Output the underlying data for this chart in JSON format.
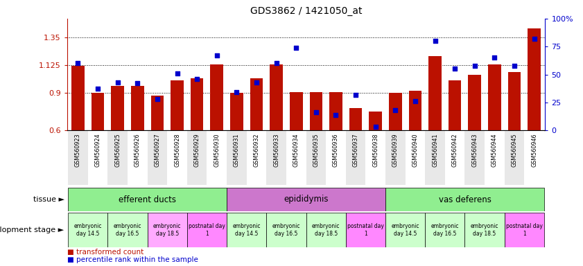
{
  "title": "GDS3862 / 1421050_at",
  "samples": [
    "GSM560923",
    "GSM560924",
    "GSM560925",
    "GSM560926",
    "GSM560927",
    "GSM560928",
    "GSM560929",
    "GSM560930",
    "GSM560931",
    "GSM560932",
    "GSM560933",
    "GSM560934",
    "GSM560935",
    "GSM560936",
    "GSM560937",
    "GSM560938",
    "GSM560939",
    "GSM560940",
    "GSM560941",
    "GSM560942",
    "GSM560943",
    "GSM560944",
    "GSM560945",
    "GSM560946"
  ],
  "transformed_count": [
    1.12,
    0.9,
    0.96,
    0.96,
    0.88,
    1.0,
    1.02,
    1.13,
    0.9,
    1.02,
    1.13,
    0.91,
    0.91,
    0.91,
    0.78,
    0.75,
    0.9,
    0.92,
    1.2,
    1.0,
    1.05,
    1.13,
    1.07,
    1.42
  ],
  "percentile_rank": [
    60,
    37,
    43,
    42,
    28,
    51,
    46,
    67,
    34,
    43,
    60,
    74,
    16,
    14,
    32,
    3,
    18,
    26,
    80,
    55,
    58,
    65,
    58,
    82
  ],
  "ylim_left": [
    0.6,
    1.5
  ],
  "ylim_right": [
    0,
    100
  ],
  "yticks_left": [
    0.6,
    0.9,
    1.125,
    1.35
  ],
  "yticks_right": [
    0,
    25,
    50,
    75,
    100
  ],
  "bar_color": "#BB1100",
  "dot_color": "#0000CC",
  "tissue_groups": [
    {
      "label": "efferent ducts",
      "start": 0,
      "end": 8,
      "color": "#90EE90"
    },
    {
      "label": "epididymis",
      "start": 8,
      "end": 16,
      "color": "#CC77CC"
    },
    {
      "label": "vas deferens",
      "start": 16,
      "end": 24,
      "color": "#90EE90"
    }
  ],
  "dev_stages": [
    {
      "label": "embryonic\nday 14.5",
      "start": 0,
      "end": 2,
      "color": "#CCFFCC"
    },
    {
      "label": "embryonic\nday 16.5",
      "start": 2,
      "end": 4,
      "color": "#CCFFCC"
    },
    {
      "label": "embryonic\nday 18.5",
      "start": 4,
      "end": 6,
      "color": "#FFAAFF"
    },
    {
      "label": "postnatal day\n1",
      "start": 6,
      "end": 8,
      "color": "#FF88FF"
    },
    {
      "label": "embryonic\nday 14.5",
      "start": 8,
      "end": 10,
      "color": "#CCFFCC"
    },
    {
      "label": "embryonic\nday 16.5",
      "start": 10,
      "end": 12,
      "color": "#CCFFCC"
    },
    {
      "label": "embryonic\nday 18.5",
      "start": 12,
      "end": 14,
      "color": "#CCFFCC"
    },
    {
      "label": "postnatal day\n1",
      "start": 14,
      "end": 16,
      "color": "#FF88FF"
    },
    {
      "label": "embryonic\nday 14.5",
      "start": 16,
      "end": 18,
      "color": "#CCFFCC"
    },
    {
      "label": "embryonic\nday 16.5",
      "start": 18,
      "end": 20,
      "color": "#CCFFCC"
    },
    {
      "label": "embryonic\nday 18.5",
      "start": 20,
      "end": 22,
      "color": "#CCFFCC"
    },
    {
      "label": "postnatal day\n1",
      "start": 22,
      "end": 24,
      "color": "#FF88FF"
    }
  ],
  "legend_red_label": "transformed count",
  "legend_blue_label": "percentile rank within the sample",
  "tissue_row_label": "tissue",
  "dev_row_label": "development stage",
  "xticklabel_bg": "#E8E8E8"
}
